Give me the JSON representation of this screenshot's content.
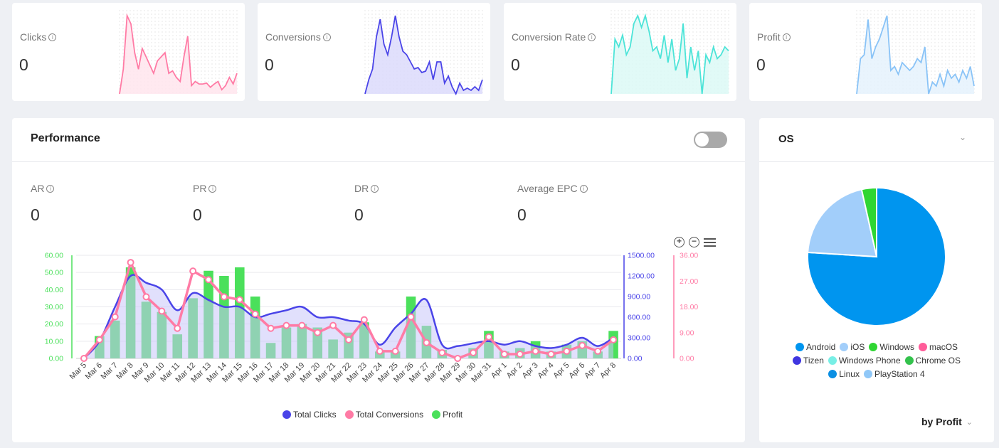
{
  "kpis": [
    {
      "title": "Clicks",
      "value": "0",
      "color": "#ff7ba5",
      "fill": "#ffe3ec",
      "spark": [
        0,
        30,
        95,
        85,
        50,
        30,
        55,
        45,
        35,
        25,
        40,
        45,
        50,
        25,
        28,
        20,
        15,
        45,
        70,
        10,
        15,
        12,
        12,
        13,
        8,
        12,
        15,
        5,
        10,
        20,
        12,
        25
      ]
    },
    {
      "title": "Conversions",
      "value": "0",
      "color": "#4a44e8",
      "fill": "#d9d8fb",
      "spark": [
        0,
        20,
        35,
        80,
        105,
        70,
        55,
        80,
        110,
        80,
        60,
        55,
        45,
        35,
        37,
        30,
        32,
        45,
        20,
        45,
        45,
        15,
        25,
        10,
        0,
        15,
        5,
        8,
        5,
        10,
        5,
        20
      ]
    },
    {
      "title": "Conversion Rate",
      "value": "0",
      "color": "#4ce4d8",
      "fill": "#daf9f5",
      "spark": [
        0,
        70,
        60,
        75,
        50,
        60,
        90,
        100,
        85,
        100,
        80,
        55,
        60,
        45,
        75,
        40,
        70,
        30,
        45,
        90,
        20,
        60,
        30,
        55,
        0,
        50,
        40,
        60,
        45,
        50,
        60,
        55
      ]
    },
    {
      "title": "Profit",
      "value": "0",
      "color": "#89c3f7",
      "fill": "#e4f1fd",
      "spark": [
        0,
        45,
        50,
        95,
        45,
        60,
        70,
        85,
        100,
        30,
        35,
        25,
        40,
        35,
        30,
        35,
        45,
        40,
        60,
        0,
        15,
        10,
        25,
        10,
        30,
        20,
        25,
        15,
        30,
        20,
        35,
        10
      ]
    }
  ],
  "performance": {
    "title": "Performance",
    "metrics": [
      {
        "label": "AR",
        "value": "0"
      },
      {
        "label": "PR",
        "value": "0"
      },
      {
        "label": "DR",
        "value": "0"
      },
      {
        "label": "Average EPC",
        "value": "0"
      }
    ]
  },
  "chart_data": [
    {
      "type": "bar",
      "categories": [
        "Mar 5",
        "Mar 6",
        "Mar 7",
        "Mar 8",
        "Mar 9",
        "Mar 10",
        "Mar 11",
        "Mar 12",
        "Mar 13",
        "Mar 14",
        "Mar 15",
        "Mar 16",
        "Mar 17",
        "Mar 18",
        "Mar 19",
        "Mar 20",
        "Mar 21",
        "Mar 22",
        "Mar 23",
        "Mar 24",
        "Mar 25",
        "Mar 26",
        "Mar 27",
        "Mar 28",
        "Mar 29",
        "Mar 30",
        "Mar 31",
        "Apr 1",
        "Apr 2",
        "Apr 3",
        "Apr 4",
        "Apr 5",
        "Apr 6",
        "Apr 7",
        "Apr 8"
      ],
      "series": [
        {
          "name": "Total Clicks",
          "kind": "area",
          "axis": "y2",
          "color": "#4a44e8",
          "values": [
            0,
            250,
            750,
            1200,
            1100,
            1000,
            700,
            950,
            850,
            750,
            750,
            600,
            650,
            700,
            750,
            600,
            600,
            550,
            500,
            200,
            450,
            650,
            850,
            200,
            180,
            220,
            250,
            200,
            250,
            180,
            150,
            200,
            300,
            180,
            300
          ]
        },
        {
          "name": "Total Conversions",
          "kind": "line",
          "axis": "y3",
          "color": "#ff7ba5",
          "values": [
            0,
            6.5,
            14.5,
            33.5,
            21.5,
            16.5,
            10.5,
            30.5,
            27.5,
            21.5,
            20.5,
            15.5,
            10.5,
            11.5,
            11.5,
            9,
            11.5,
            6.5,
            13.5,
            2.5,
            2.5,
            14.5,
            5.5,
            2,
            0,
            2,
            7.5,
            1.5,
            1.5,
            2.5,
            1.5,
            2.5,
            4.5,
            2.5,
            6.5
          ]
        },
        {
          "name": "Profit",
          "kind": "bar",
          "axis": "y",
          "color": "#4be05b",
          "values": [
            0,
            13,
            22,
            53,
            33,
            27,
            14,
            35,
            51,
            48,
            53,
            36,
            9,
            18,
            20,
            18,
            11,
            15,
            21,
            4,
            4,
            36,
            19,
            5,
            1,
            6,
            16,
            4,
            6,
            10,
            4,
            8,
            10,
            4,
            16
          ]
        }
      ],
      "axes": {
        "y": {
          "ticks": [
            "0.00",
            "10.00",
            "20.00",
            "30.00",
            "40.00",
            "50.00",
            "60.00"
          ],
          "min": 0,
          "max": 60,
          "color": "#4be05b"
        },
        "y2": {
          "ticks": [
            "0.00",
            "300.00",
            "600.00",
            "900.00",
            "1200.00",
            "1500.00"
          ],
          "min": 0,
          "max": 1500,
          "color": "#4a44e8"
        },
        "y3": {
          "ticks": [
            "0.00",
            "9.00",
            "18.00",
            "27.00",
            "36.00"
          ],
          "min": 0,
          "max": 36,
          "color": "#ff7ba5"
        }
      },
      "legend": "bottom",
      "grid": true
    },
    {
      "type": "pie",
      "title": "OS",
      "slices": [
        {
          "name": "Android",
          "value": 76,
          "color": "#0095ef"
        },
        {
          "name": "iOS",
          "value": 20.5,
          "color": "#a2cefa"
        },
        {
          "name": "Windows",
          "value": 3.5,
          "color": "#2fd633"
        },
        {
          "name": "macOS",
          "value": 0,
          "color": "#ff5c99"
        },
        {
          "name": "Tizen",
          "value": 0,
          "color": "#3f36e0"
        },
        {
          "name": "Windows Phone",
          "value": 0,
          "color": "#78efe6"
        },
        {
          "name": "Chrome OS",
          "value": 0,
          "color": "#33c24c"
        },
        {
          "name": "Linux",
          "value": 0,
          "color": "#0b8fe3"
        },
        {
          "name": "PlayStation 4",
          "value": 0,
          "color": "#90c8f8"
        }
      ],
      "legend": "bottom"
    }
  ],
  "os_panel": {
    "title": "OS",
    "sort_label": "by Profit"
  }
}
